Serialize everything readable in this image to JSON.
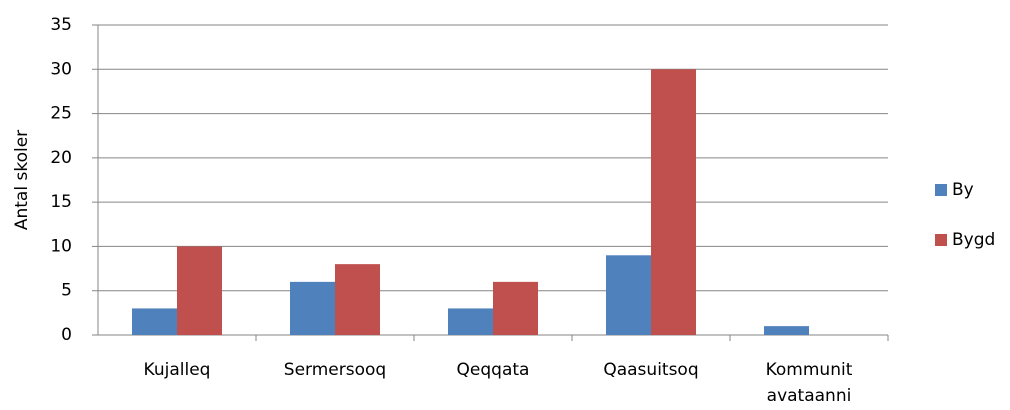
{
  "chart_data": {
    "type": "bar",
    "categories": [
      "Kujalleq",
      "Sermersooq",
      "Qeqqata",
      "Qaasuitsoq",
      "Kommunit avataanni"
    ],
    "series": [
      {
        "name": "By",
        "color": "#4f81bd",
        "values": [
          3,
          6,
          3,
          9,
          1
        ]
      },
      {
        "name": "Bygd",
        "color": "#c0504d",
        "values": [
          10,
          8,
          6,
          30,
          0
        ]
      }
    ],
    "ylabel": "Antal skoler",
    "ylim": [
      0,
      35
    ],
    "yticks": [
      0,
      5,
      10,
      15,
      20,
      25,
      30,
      35
    ],
    "grid": true,
    "legend": "right"
  }
}
